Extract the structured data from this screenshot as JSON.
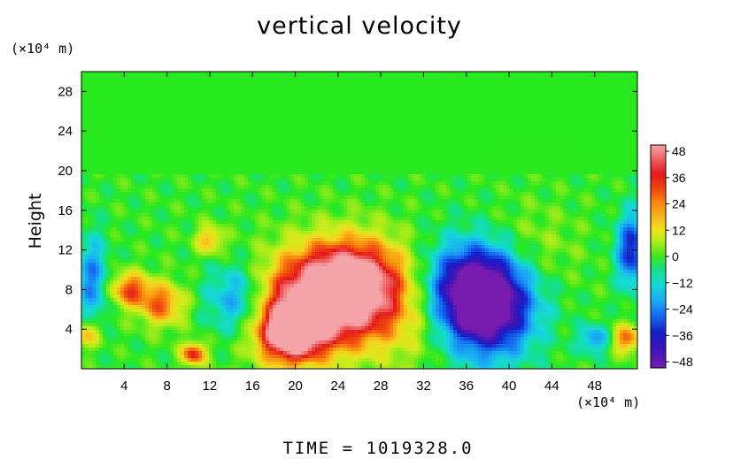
{
  "chart_data": {
    "type": "heatmap",
    "title": "vertical velocity",
    "ylabel": "Height",
    "y_unit": "(×10⁴ m)",
    "x_unit": "(×10⁴ m)",
    "xlim": [
      0,
      52
    ],
    "ylim": [
      0,
      30
    ],
    "x_ticks": [
      "4",
      "8",
      "12",
      "16",
      "20",
      "24",
      "28",
      "32",
      "36",
      "40",
      "44",
      "48"
    ],
    "y_ticks": [
      "4",
      "8",
      "12",
      "16",
      "20",
      "24",
      "28"
    ],
    "colorbar": {
      "ticks": [
        "48",
        "36",
        "24",
        "12",
        "0",
        "−12",
        "−24",
        "−36",
        "−48"
      ],
      "range": [
        -48,
        48
      ]
    },
    "features": [
      {
        "x": 22.5,
        "y": 6.5,
        "value": 48,
        "sx": 4.5,
        "sy": 3.5
      },
      {
        "x": 19.5,
        "y": 3.5,
        "value": 48,
        "sx": 2.0,
        "sy": 2.0
      },
      {
        "x": 25.5,
        "y": 9.0,
        "value": 40,
        "sx": 3.5,
        "sy": 3.0
      },
      {
        "x": 38.0,
        "y": 6.0,
        "value": -48,
        "sx": 3.0,
        "sy": 3.5
      },
      {
        "x": 36.5,
        "y": 8.5,
        "value": -36,
        "sx": 3.0,
        "sy": 3.0
      },
      {
        "x": 4.5,
        "y": 8.0,
        "value": 30,
        "sx": 1.3,
        "sy": 1.2
      },
      {
        "x": 7.5,
        "y": 6.5,
        "value": 28,
        "sx": 1.5,
        "sy": 1.5
      },
      {
        "x": 10.5,
        "y": 1.5,
        "value": 36,
        "sx": 0.8,
        "sy": 0.8
      },
      {
        "x": 12.0,
        "y": 13.0,
        "value": 22,
        "sx": 0.9,
        "sy": 1.0
      },
      {
        "x": 51.0,
        "y": 3.0,
        "value": 28,
        "sx": 1.0,
        "sy": 1.0
      },
      {
        "x": 0.5,
        "y": 3.5,
        "value": 22,
        "sx": 0.9,
        "sy": 1.0
      },
      {
        "x": 14.5,
        "y": 7.0,
        "value": -26,
        "sx": 2.0,
        "sy": 2.5
      },
      {
        "x": 1.0,
        "y": 9.0,
        "value": -24,
        "sx": 1.0,
        "sy": 3.0
      },
      {
        "x": 51.5,
        "y": 12.0,
        "value": -36,
        "sx": 1.0,
        "sy": 2.5
      },
      {
        "x": 48.0,
        "y": 3.0,
        "value": -22,
        "sx": 1.0,
        "sy": 1.0
      },
      {
        "x": 31.0,
        "y": 4.0,
        "value": 8,
        "sx": 2.5,
        "sy": 3.0
      },
      {
        "x": 42.0,
        "y": 12.0,
        "value": 8,
        "sx": 3.0,
        "sy": 3.0
      }
    ]
  },
  "footer": {
    "time_label": "TIME = 1019328.0"
  }
}
